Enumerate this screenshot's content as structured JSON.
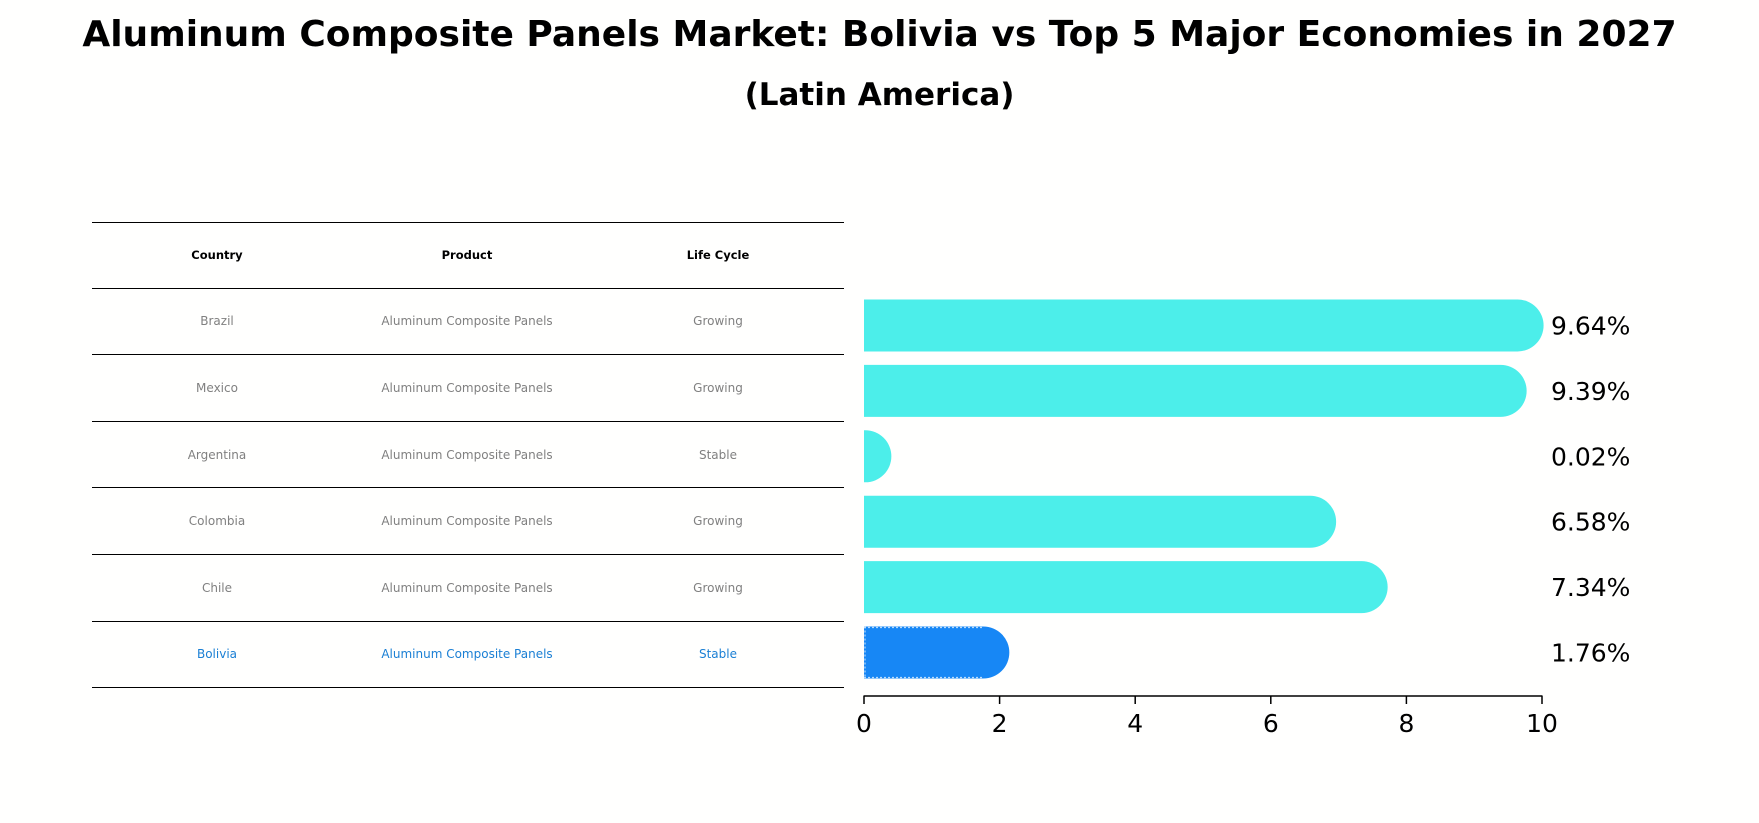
{
  "title": "Aluminum Composite Panels Market: Bolivia vs Top 5 Major Economies in 2027",
  "subtitle": "(Latin America)",
  "colors": {
    "bar": "#4ceeea",
    "highlight_bar": "#1787f5",
    "highlight_text": "#1a7fd4",
    "muted_text": "#808080"
  },
  "table": {
    "headers": [
      "Country",
      "Product",
      "Life Cycle"
    ],
    "rows": [
      [
        "Brazil",
        "Aluminum Composite Panels",
        "Growing"
      ],
      [
        "Mexico",
        "Aluminum Composite Panels",
        "Growing"
      ],
      [
        "Argentina",
        "Aluminum Composite Panels",
        "Stable"
      ],
      [
        "Colombia",
        "Aluminum Composite Panels",
        "Growing"
      ],
      [
        "Chile",
        "Aluminum Composite Panels",
        "Growing"
      ],
      [
        "Bolivia",
        "Aluminum Composite Panels",
        "Stable"
      ]
    ],
    "highlight_row": 5
  },
  "chart_data": {
    "type": "bar",
    "orientation": "horizontal",
    "categories": [
      "Brazil",
      "Mexico",
      "Argentina",
      "Colombia",
      "Chile",
      "Bolivia"
    ],
    "values": [
      9.64,
      9.39,
      0.02,
      6.58,
      7.34,
      1.76
    ],
    "value_labels": [
      "9.64%",
      "9.39%",
      "0.02%",
      "6.58%",
      "7.34%",
      "1.76%"
    ],
    "highlight_category": "Bolivia",
    "xlim": [
      0,
      10
    ],
    "xticks": [
      0,
      2,
      4,
      6,
      8,
      10
    ],
    "xtick_labels": [
      "0",
      "2",
      "4",
      "6",
      "8",
      "10"
    ],
    "xlabel": "",
    "ylabel": "",
    "grid": false,
    "legend": "none"
  }
}
